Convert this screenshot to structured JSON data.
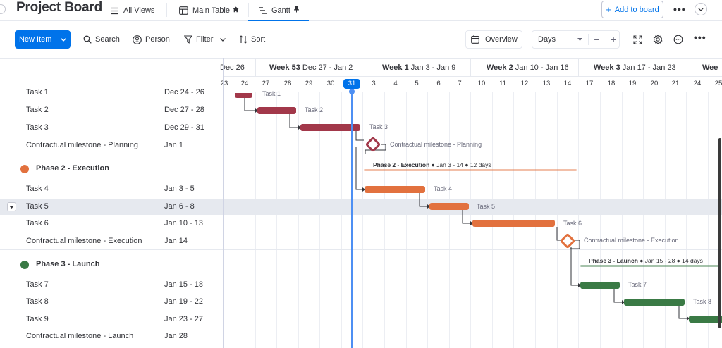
{
  "header": {
    "board_title": "Project Board",
    "views": [
      {
        "label": "All Views"
      },
      {
        "label": "Main Table"
      },
      {
        "label": "Gantt"
      }
    ],
    "add_to_board": "Add to board"
  },
  "toolbar": {
    "new_item": "New Item",
    "search": "Search",
    "person": "Person",
    "filter": "Filter",
    "sort": "Sort",
    "overview": "Overview",
    "zoom": "Days",
    "minus": "−",
    "plus": "+"
  },
  "timeline": {
    "weeks": [
      {
        "bold": "",
        "rest": "Dec 26"
      },
      {
        "bold": "Week 53",
        "rest": " Dec 27 - Jan 2"
      },
      {
        "bold": "Week 1",
        "rest": " Jan 3 - Jan 9"
      },
      {
        "bold": "Week 2",
        "rest": " Jan 10 - Jan 16"
      },
      {
        "bold": "Week 3",
        "rest": " Jan 17 - Jan 23"
      },
      {
        "bold": "Wee",
        "rest": ""
      }
    ],
    "days": [
      "23",
      "24",
      "27",
      "28",
      "29",
      "30",
      "31",
      "3",
      "4",
      "5",
      "6",
      "7",
      "10",
      "11",
      "12",
      "13",
      "14",
      "17",
      "18",
      "19",
      "20",
      "21",
      "24",
      "25"
    ],
    "today_label": "31"
  },
  "groups": [
    {
      "name": "Phase 2 - Execution",
      "color": "#e2713e"
    },
    {
      "name": "Phase 3 - Launch",
      "color": "#3a7a45"
    }
  ],
  "rows": [
    {
      "name": "Task 1",
      "date": "Dec 24 - 26"
    },
    {
      "name": "Task 2",
      "date": "Dec 27 - 28"
    },
    {
      "name": "Task 3",
      "date": "Dec 29 - 31"
    },
    {
      "name": "Contractual milestone - Planning",
      "date": "Jan 1"
    },
    {
      "name": "Task 4",
      "date": "Jan 3 - 5"
    },
    {
      "name": "Task 5",
      "date": "Jan 6 - 8"
    },
    {
      "name": "Task 6",
      "date": "Jan 10 - 13"
    },
    {
      "name": "Contractual milestone - Execution",
      "date": "Jan 14"
    },
    {
      "name": "Task 7",
      "date": "Jan 15 - 18"
    },
    {
      "name": "Task 8",
      "date": "Jan 19 - 22"
    },
    {
      "name": "Task 9",
      "date": "Jan 23 - 27"
    },
    {
      "name": "Contractual milestone - Launch",
      "date": "Jan 28"
    }
  ],
  "chart_labels": {
    "task1": "Task 1",
    "task2": "Task 2",
    "task3": "Task 3",
    "ms_planning": "Contractual milestone - Planning",
    "phase2_name": "Phase 2 - Execution",
    "phase2_meta": " ● Jan 3 - 14 ● 12 days",
    "task4": "Task 4",
    "task5": "Task 5",
    "task6": "Task 6",
    "ms_execution": "Contractual milestone - Execution",
    "phase3_name": "Phase 3 - Launch",
    "phase3_meta": " ● Jan 15 - 28 ● 14 days",
    "task7": "Task 7",
    "task8": "Task 8"
  },
  "colors": {
    "accent": "#0073ea",
    "phase1_bar": "#a2384a",
    "phase2_bar": "#e2713e",
    "phase3_bar": "#3a7a45",
    "today_line": "#4d8ff3"
  }
}
